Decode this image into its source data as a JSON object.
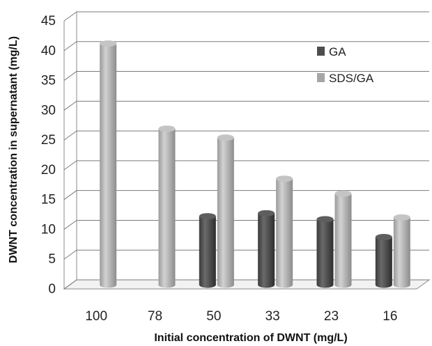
{
  "chart_data": {
    "type": "bar",
    "style": "3d-cylinder",
    "categories": [
      "100",
      "78",
      "50",
      "33",
      "23",
      "16"
    ],
    "series": [
      {
        "name": "GA",
        "color": "#4d4d4d",
        "values": [
          null,
          null,
          11.5,
          12,
          11,
          8
        ]
      },
      {
        "name": "SDS/GA",
        "color": "#a6a6a6",
        "values": [
          40.5,
          26.2,
          24.7,
          17.8,
          15.3,
          11.3
        ]
      }
    ],
    "title": "",
    "xlabel": "Initial concentration of DWNT (mg/L)",
    "ylabel": "DWNT concentration in supernatant (mg/L)",
    "ylim": [
      0,
      45
    ],
    "yticks": [
      0,
      5,
      10,
      15,
      20,
      25,
      30,
      35,
      40,
      45
    ],
    "grid": true,
    "legend_position": "top-right"
  }
}
